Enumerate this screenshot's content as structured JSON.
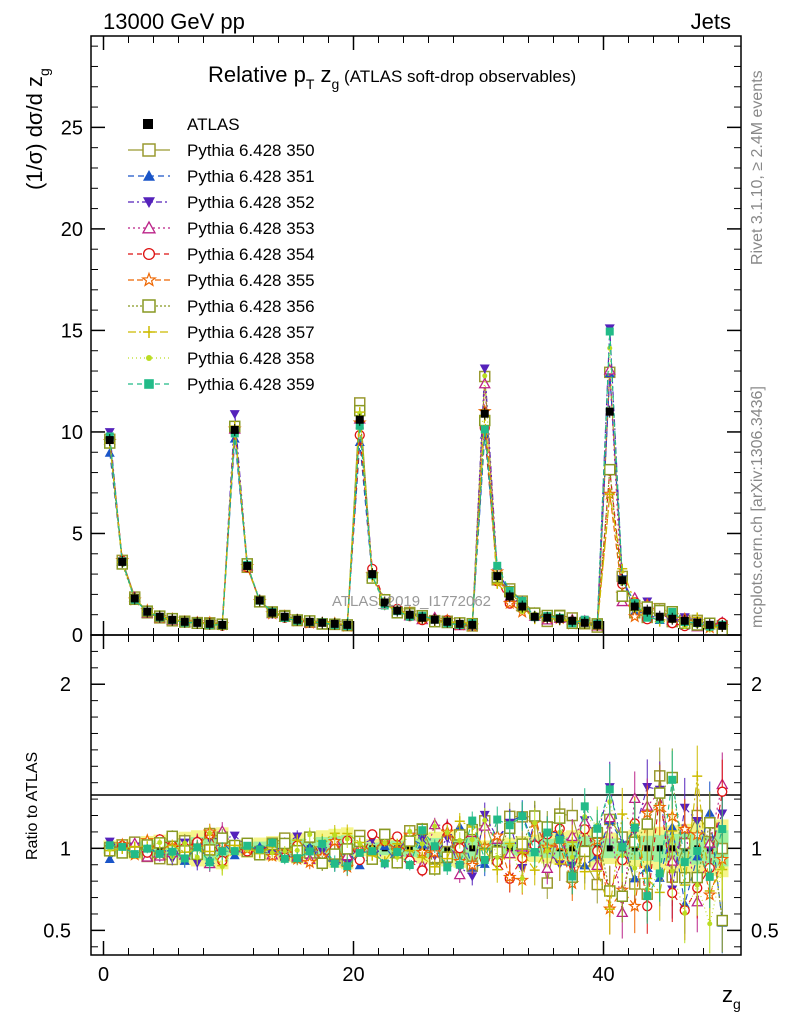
{
  "header": {
    "left": "13000 GeV pp",
    "right": "Jets"
  },
  "side_notes": {
    "rivet": "Rivet 3.1.10, ≥ 2.4M events",
    "mcplots": "mcplots.cern.ch [arXiv:1306.3436]"
  },
  "watermark": "ATLAS_2019_I1772062",
  "chart_data": {
    "type": "line",
    "title_main": "Relative p",
    "title_sub_T": "T",
    "title_z": " z",
    "title_sub_g": "g",
    "title_tail": " (ATLAS soft-drop observables)",
    "ylabel_main": "(1/σ) dσ/d z",
    "ylabel_sub": "g",
    "ylabel_ratio": "Ratio to ATLAS",
    "xlabel": "z",
    "xlabel_sub": "g",
    "xlim": [
      -1,
      51
    ],
    "ylim_main": [
      0,
      29.5
    ],
    "ylim_ratio": [
      0.35,
      2.3
    ],
    "main_yticks": [
      "0",
      "5",
      "10",
      "15",
      "20",
      "25"
    ],
    "ratio_yticks": [
      "0.5",
      "1",
      "2"
    ],
    "xticks": [
      "0",
      "20",
      "40"
    ],
    "x": [
      0.5,
      1.5,
      2.5,
      3.5,
      4.5,
      5.5,
      6.5,
      7.5,
      8.5,
      9.5,
      10.5,
      11.5,
      12.5,
      13.5,
      14.5,
      15.5,
      16.5,
      17.5,
      18.5,
      19.5,
      20.5,
      21.5,
      22.5,
      23.5,
      24.5,
      25.5,
      26.5,
      27.5,
      28.5,
      29.5,
      30.5,
      31.5,
      32.5,
      33.5,
      34.5,
      35.5,
      36.5,
      37.5,
      38.5,
      39.5,
      40.5,
      41.5,
      42.5,
      43.5,
      44.5,
      45.5,
      46.5,
      47.5,
      48.5,
      49.5
    ],
    "atlas": [
      9.6,
      3.6,
      1.8,
      1.15,
      0.9,
      0.75,
      0.65,
      0.6,
      0.55,
      0.5,
      10.1,
      3.4,
      1.7,
      1.1,
      0.9,
      0.75,
      0.65,
      0.6,
      0.55,
      0.5,
      10.6,
      3.0,
      1.6,
      1.2,
      1.0,
      0.85,
      0.75,
      0.65,
      0.55,
      0.5,
      10.9,
      2.9,
      1.9,
      1.4,
      0.9,
      0.85,
      0.8,
      0.7,
      0.6,
      0.5,
      11.0,
      2.7,
      1.4,
      1.2,
      0.9,
      0.8,
      0.7,
      0.6,
      0.5,
      0.45
    ],
    "legend_title": "ATLAS",
    "legend_position": "top-left",
    "series": [
      {
        "name": "Pythia 6.428 350",
        "color": "#9a9a30",
        "marker": "open-square",
        "dash": "",
        "scale": 1.02
      },
      {
        "name": "Pythia 6.428 351",
        "color": "#1a55c8",
        "marker": "triangle",
        "dash": "6,4",
        "scale": 0.94
      },
      {
        "name": "Pythia 6.428 352",
        "color": "#5522bb",
        "marker": "triangle-down",
        "dash": "6,3,2,3",
        "scale": 1.06
      },
      {
        "name": "Pythia 6.428 353",
        "color": "#bb2288",
        "marker": "open-triangle",
        "dash": "2,3",
        "scale": 1.0
      },
      {
        "name": "Pythia 6.428 354",
        "color": "#dd1111",
        "marker": "open-circle",
        "dash": "5,4",
        "scale": 1.0
      },
      {
        "name": "Pythia 6.428 355",
        "color": "#ee6600",
        "marker": "open-star",
        "dash": "6,3",
        "scale": 1.0
      },
      {
        "name": "Pythia 6.428 356",
        "color": "#889922",
        "marker": "open-square",
        "dash": "2,2",
        "scale": 1.0
      },
      {
        "name": "Pythia 6.428 357",
        "color": "#ccbb00",
        "marker": "cross",
        "dash": "8,3,2,3",
        "scale": 1.0
      },
      {
        "name": "Pythia 6.428 358",
        "color": "#bbdd22",
        "marker": "dot",
        "dash": "1,3",
        "scale": 1.0
      },
      {
        "name": "Pythia 6.428 359",
        "color": "#22bb88",
        "marker": "square",
        "dash": "5,4",
        "scale": 1.0
      }
    ]
  }
}
